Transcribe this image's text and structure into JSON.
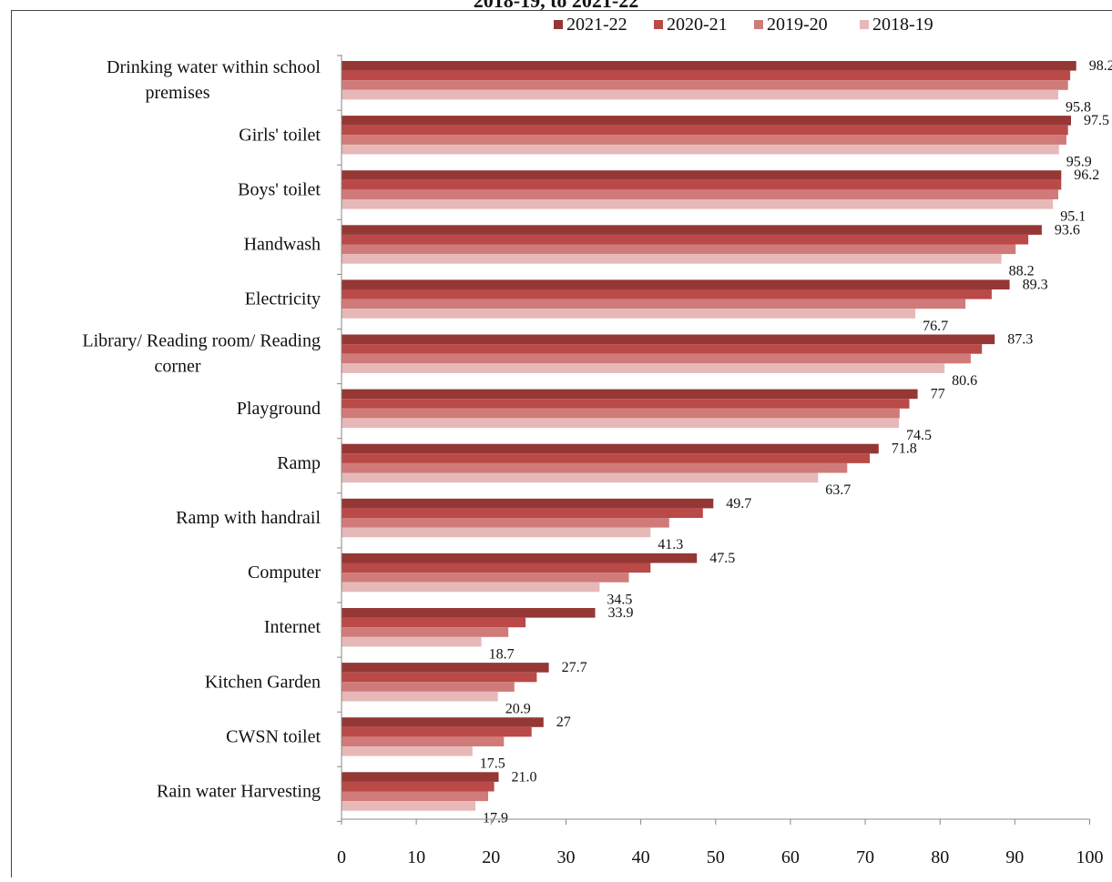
{
  "page_title_fragment": "2018-19, to 2021-22",
  "chart_data": {
    "type": "bar",
    "orientation": "horizontal",
    "categories": [
      [
        "Drinking water within school",
        "premises"
      ],
      [
        "Girls' toilet"
      ],
      [
        "Boys' toilet"
      ],
      [
        "Handwash"
      ],
      [
        "Electricity"
      ],
      [
        "Library/ Reading room/ Reading",
        "corner"
      ],
      [
        "Playground"
      ],
      [
        "Ramp"
      ],
      [
        "Ramp with handrail"
      ],
      [
        "Computer"
      ],
      [
        "Internet"
      ],
      [
        "Kitchen Garden"
      ],
      [
        "CWSN toilet"
      ],
      [
        "Rain water Harvesting"
      ]
    ],
    "series": [
      {
        "name": "2021-22",
        "color": "#953735",
        "values": [
          98.2,
          97.5,
          96.2,
          93.6,
          89.3,
          87.3,
          77,
          71.8,
          49.7,
          47.5,
          33.9,
          27.7,
          27,
          21.0
        ]
      },
      {
        "name": "2020-21",
        "color": "#b94a48",
        "values": [
          97.4,
          97.1,
          96.2,
          91.8,
          86.9,
          85.6,
          75.9,
          70.6,
          48.3,
          41.3,
          24.6,
          26.1,
          25.4,
          20.4
        ]
      },
      {
        "name": "2019-20",
        "color": "#d07b79",
        "values": [
          97.1,
          96.9,
          95.8,
          90.1,
          83.4,
          84.1,
          74.6,
          67.6,
          43.8,
          38.4,
          22.3,
          23.1,
          21.7,
          19.6
        ]
      },
      {
        "name": "2018-19",
        "color": "#e6b9b8",
        "values": [
          95.8,
          95.9,
          95.1,
          88.2,
          76.7,
          80.6,
          74.5,
          63.7,
          41.3,
          34.5,
          18.7,
          20.9,
          17.5,
          17.9
        ]
      }
    ],
    "labels": [
      {
        "category": 0,
        "top": "98.2",
        "bottom": "95.8"
      },
      {
        "category": 1,
        "top": "97.5",
        "bottom": "95.9"
      },
      {
        "category": 2,
        "top": "96.2",
        "bottom": "95.1"
      },
      {
        "category": 3,
        "top": "93.6",
        "bottom": "88.2"
      },
      {
        "category": 4,
        "top": "89.3",
        "bottom": "76.7"
      },
      {
        "category": 5,
        "top": "87.3",
        "bottom": "80.6"
      },
      {
        "category": 6,
        "top": "77",
        "bottom": "74.5"
      },
      {
        "category": 7,
        "top": "71.8",
        "bottom": "63.7"
      },
      {
        "category": 8,
        "top": "49.7",
        "bottom": "41.3"
      },
      {
        "category": 9,
        "top": "47.5",
        "bottom": "34.5"
      },
      {
        "category": 10,
        "top": "33.9",
        "bottom": "18.7"
      },
      {
        "category": 11,
        "top": "27.7",
        "bottom": "20.9"
      },
      {
        "category": 12,
        "top": "27",
        "bottom": "17.5"
      },
      {
        "category": 13,
        "top": "21.0",
        "bottom": "17.9"
      }
    ],
    "xlim": [
      0,
      100
    ],
    "xticks": [
      "0",
      "10",
      "20",
      "30",
      "40",
      "50",
      "60",
      "70",
      "80",
      "90",
      "100"
    ],
    "legend_position": "top",
    "grid": false
  }
}
